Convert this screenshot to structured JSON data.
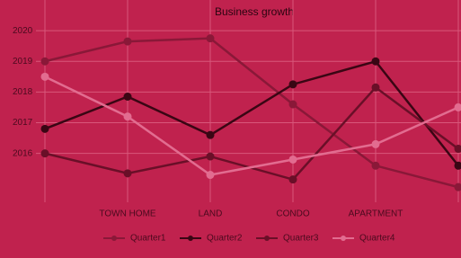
{
  "chart_data": {
    "type": "line",
    "title": "Business growth",
    "categories": [
      null,
      "TOWN HOME",
      "LAND",
      "CONDO",
      "APARTMENT",
      null
    ],
    "series": [
      {
        "name": "Quarter1",
        "color": "#8a1838",
        "values": [
          2019,
          2019.65,
          2019.75,
          2017.6,
          2015.6,
          2014.9
        ]
      },
      {
        "name": "Quarter2",
        "color": "#3a0614",
        "values": [
          2016.8,
          2017.85,
          2016.6,
          2018.25,
          2019,
          2015.6
        ]
      },
      {
        "name": "Quarter3",
        "color": "#6a0f28",
        "values": [
          2016,
          2015.35,
          2015.9,
          2015.15,
          2018.15,
          2016.15
        ]
      },
      {
        "name": "Quarter4",
        "color": "#e26c90",
        "values": [
          2018.5,
          2017.2,
          2015.3,
          2015.8,
          2016.3,
          2017.5
        ]
      }
    ],
    "ylim": [
      2014.7,
      2021
    ],
    "yticks": [
      2016,
      2017,
      2018,
      2019,
      2020
    ],
    "grid": true,
    "legend": "bottom"
  }
}
